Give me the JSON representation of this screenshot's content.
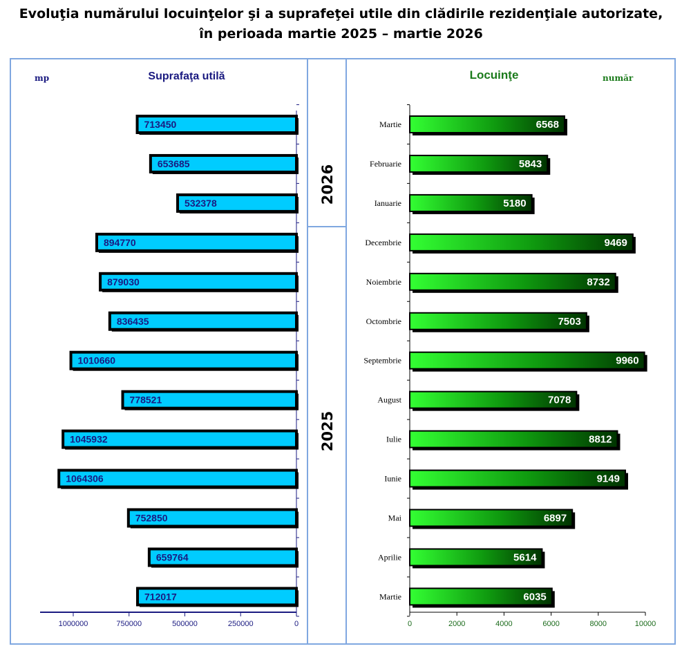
{
  "title": {
    "line1": "Evoluţia numărului locuinţelor şi a suprafeţei utile din clădirile rezidenţiale autorizate,",
    "line2": "în perioada martie 2025 – martie 2026"
  },
  "panels": {
    "left": {
      "heading": "Suprafaţa utilă",
      "unit": "mp"
    },
    "right": {
      "heading": "Locuinţe",
      "unit": "număr"
    },
    "years": [
      "2026",
      "2025"
    ]
  },
  "colors": {
    "left_bar": "#00ccff",
    "right_bar_light": "#33ff33",
    "right_bar_dark": "#003300",
    "frame": "#7fa7e0"
  },
  "chart_data": [
    {
      "type": "bar",
      "orientation": "horizontal-reversed",
      "title": "Suprafaţa utilă",
      "unit": "mp",
      "categories": [
        "Martie 2026",
        "Februarie 2026",
        "Ianuarie 2026",
        "Decembrie 2025",
        "Noiembrie 2025",
        "Octombrie 2025",
        "Septembrie 2025",
        "August 2025",
        "Iulie 2025",
        "Iunie 2025",
        "Mai 2025",
        "Aprilie 2025",
        "Martie 2025"
      ],
      "values": [
        713450,
        653685,
        532378,
        894770,
        879030,
        836435,
        1010660,
        778521,
        1045932,
        1064306,
        752850,
        659764,
        712017
      ],
      "xlim": [
        0,
        1150000
      ],
      "ticks": [
        1000000,
        750000,
        500000,
        250000,
        0
      ],
      "tick_labels": [
        "1000000",
        "750000",
        "500000",
        "250000",
        "0"
      ]
    },
    {
      "type": "bar",
      "orientation": "horizontal",
      "title": "Locuinţe",
      "unit": "număr",
      "categories": [
        "Martie",
        "Februarie",
        "Ianuarie",
        "Decembrie",
        "Noiembrie",
        "Octombrie",
        "Septembrie",
        "August",
        "Iulie",
        "Iunie",
        "Mai",
        "Aprilie",
        "Martie"
      ],
      "values": [
        6568,
        5843,
        5180,
        9469,
        8732,
        7503,
        9960,
        7078,
        8812,
        9149,
        6897,
        5614,
        6035
      ],
      "xlim": [
        0,
        10000
      ],
      "ticks": [
        0,
        2000,
        4000,
        6000,
        8000,
        10000
      ],
      "tick_labels": [
        "0",
        "2000",
        "4000",
        "6000",
        "8000",
        "10000"
      ]
    }
  ]
}
